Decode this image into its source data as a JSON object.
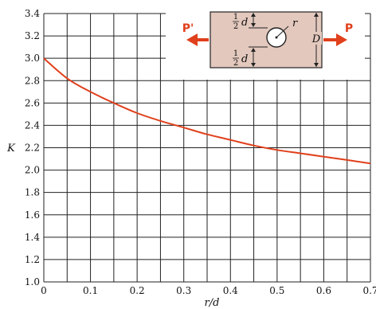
{
  "chart_data": {
    "type": "line",
    "xlabel": "r/d",
    "ylabel": "K",
    "xlim": [
      0,
      0.7
    ],
    "ylim": [
      1.0,
      3.4
    ],
    "x_ticks": [
      0,
      0.1,
      0.2,
      0.3,
      0.4,
      0.5,
      0.6,
      0.7
    ],
    "x_tick_labels": [
      "0",
      "0.1",
      "0.2",
      "0.3",
      "0.4",
      "0.5",
      "0.6",
      "0.7"
    ],
    "y_ticks": [
      1.0,
      1.2,
      1.4,
      1.6,
      1.8,
      2.0,
      2.2,
      2.4,
      2.6,
      2.8,
      3.0,
      3.2,
      3.4
    ],
    "y_tick_labels": [
      "1.0",
      "1.2",
      "1.4",
      "1.6",
      "1.8",
      "2.0",
      "2.2",
      "2.4",
      "2.6",
      "2.8",
      "3.0",
      "3.2",
      "3.4"
    ],
    "grid": true,
    "series": [
      {
        "color": "#e0401c",
        "x": [
          0,
          0.05,
          0.1,
          0.15,
          0.2,
          0.25,
          0.3,
          0.35,
          0.4,
          0.45,
          0.5,
          0.55,
          0.6,
          0.65,
          0.7
        ],
        "values": [
          3.0,
          2.82,
          2.7,
          2.6,
          2.51,
          2.44,
          2.38,
          2.32,
          2.27,
          2.22,
          2.18,
          2.15,
          2.12,
          2.09,
          2.06
        ]
      }
    ]
  },
  "inset": {
    "left_force": "P'",
    "right_force": "P",
    "half": "1",
    "half_den": "2",
    "d_symbol": "d",
    "D_symbol": "D",
    "r_symbol": "r",
    "plate_color": "#e3c8bd",
    "arrow_color": "#e0401c"
  }
}
